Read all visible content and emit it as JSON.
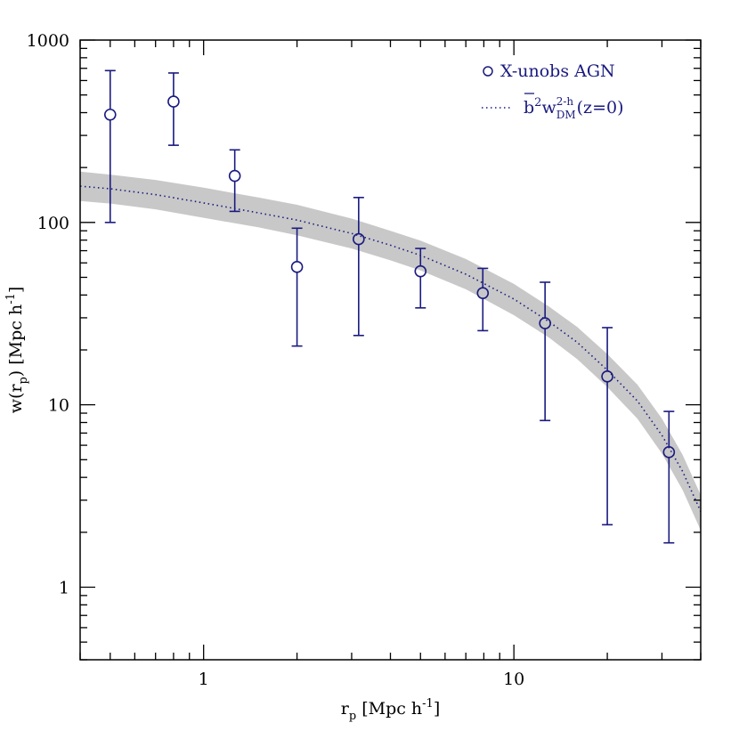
{
  "chart_data": {
    "type": "scatter",
    "x_scale": "log",
    "y_scale": "log",
    "xlim": [
      0.4,
      40
    ],
    "ylim": [
      0.4,
      1000
    ],
    "x_ticks": [
      {
        "value": 1,
        "label": "1"
      },
      {
        "value": 10,
        "label": "10"
      }
    ],
    "y_ticks": [
      {
        "value": 1,
        "label": "1"
      },
      {
        "value": 10,
        "label": "10"
      },
      {
        "value": 100,
        "label": "100"
      },
      {
        "value": 1000,
        "label": "1000"
      }
    ],
    "xlabel": {
      "base": "r",
      "sub": "p",
      "rest": " [Mpc h",
      "sup": "-1",
      "end": "]"
    },
    "ylabel": {
      "base": "w(r",
      "sub": "p",
      "rest": ") [Mpc h",
      "sup": "-1",
      "end": "]"
    },
    "legend_placement": "top-right",
    "colors": {
      "data": "#1a1a80",
      "band": "#c8c8c8",
      "axes": "#000000"
    },
    "series": [
      {
        "name": "X-unobs AGN",
        "kind": "points-with-errorbars",
        "marker": "open-circle",
        "points": [
          {
            "x": 0.5,
            "y": 390,
            "ylo": 100,
            "yhi": 680
          },
          {
            "x": 0.8,
            "y": 460,
            "ylo": 265,
            "yhi": 660
          },
          {
            "x": 1.26,
            "y": 180,
            "ylo": 115,
            "yhi": 250
          },
          {
            "x": 2.0,
            "y": 57,
            "ylo": 21,
            "yhi": 93
          },
          {
            "x": 3.16,
            "y": 81,
            "ylo": 24,
            "yhi": 137
          },
          {
            "x": 5.0,
            "y": 54,
            "ylo": 34,
            "yhi": 72
          },
          {
            "x": 7.94,
            "y": 41,
            "ylo": 25.5,
            "yhi": 56
          },
          {
            "x": 12.6,
            "y": 28,
            "ylo": 8.2,
            "yhi": 47
          },
          {
            "x": 20.0,
            "y": 14.3,
            "ylo": 2.2,
            "yhi": 26.5
          },
          {
            "x": 31.6,
            "y": 5.5,
            "ylo": 1.75,
            "yhi": 9.2
          }
        ]
      },
      {
        "name": "b̄²w_DM^(2-h)(z=0)",
        "legend_parts": {
          "bbar": "b",
          "sq": "2",
          "w": "w",
          "sub": "DM",
          "sup": "2-h",
          "tail": "(z=0)"
        },
        "kind": "dotted-line-with-band",
        "x": [
          0.4,
          0.5,
          0.7,
          1.0,
          1.5,
          2.0,
          3.0,
          4.0,
          5.0,
          7.0,
          10.0,
          13.0,
          16.0,
          20.0,
          25.0,
          30.0,
          35.0,
          40.0
        ],
        "y": [
          158,
          153,
          142,
          128,
          113,
          103,
          87,
          75,
          66,
          52,
          38,
          28.5,
          22,
          15.5,
          10.5,
          6.8,
          4.3,
          2.6
        ],
        "y_lo": [
          131,
          127,
          118,
          106,
          94,
          85,
          72,
          62,
          54.5,
          43,
          31,
          23.3,
          17.8,
          12.5,
          8.4,
          5.4,
          3.4,
          2.05
        ],
        "y_hi": [
          190,
          183,
          171,
          155,
          137,
          125,
          105,
          90,
          79.5,
          63,
          46,
          34.5,
          26.7,
          19,
          12.9,
          8.4,
          5.3,
          3.2
        ]
      }
    ]
  }
}
